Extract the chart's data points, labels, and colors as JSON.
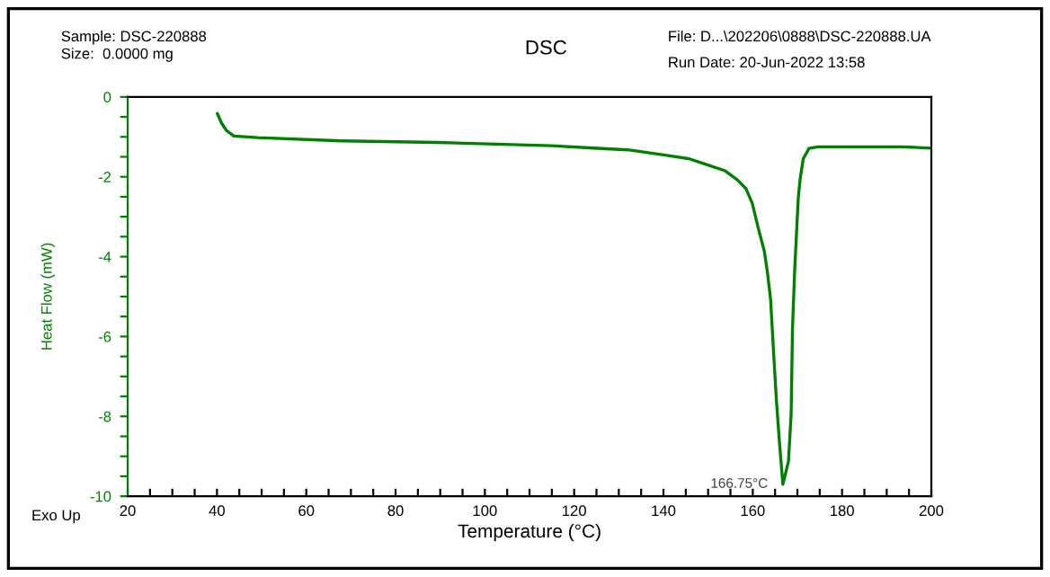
{
  "chart_data": {
    "type": "line",
    "title": "DSC",
    "xlabel": "Temperature (°C)",
    "ylabel": "Heat Flow (mW)",
    "annotations": [
      "Sample: DSC-220888",
      "Size:  0.0000 mg",
      "File: D...\\202206\\0888\\DSC-220888.UA",
      "Run Date: 20-Jun-2022 13:58",
      "Exo Up",
      {
        "text": "166.75°C",
        "x": 166.75,
        "y": -9.7
      }
    ],
    "series": [
      {
        "color": "#008000",
        "x": [
          40.1,
          41.0,
          42.1,
          43.8,
          49.1,
          67.9,
          89.3,
          114.9,
          124.3,
          131.0,
          132.4,
          140.4,
          145.8,
          149.8,
          153.8,
          156.5,
          158.5,
          159.9,
          161.2,
          162.6,
          163.3,
          164.0,
          164.6,
          165.3,
          166.0,
          166.75,
          168.0,
          168.6,
          168.9,
          169.4,
          169.8,
          170.2,
          170.6,
          171.3,
          172.6,
          174.6,
          193.5,
          199.5
        ],
        "values": [
          -0.42,
          -0.65,
          -0.84,
          -0.98,
          -1.02,
          -1.1,
          -1.14,
          -1.22,
          -1.28,
          -1.32,
          -1.33,
          -1.46,
          -1.55,
          -1.7,
          -1.85,
          -2.07,
          -2.3,
          -2.67,
          -3.27,
          -3.87,
          -4.4,
          -5.07,
          -6.27,
          -7.6,
          -8.68,
          -9.7,
          -9.13,
          -7.93,
          -5.8,
          -4.32,
          -3.42,
          -2.52,
          -2.07,
          -1.55,
          -1.29,
          -1.25,
          -1.25,
          -1.28
        ]
      }
    ],
    "xlim": [
      20,
      200
    ],
    "ylim": [
      -10,
      0
    ],
    "xticks": [
      20,
      {
        "value": 25,
        "label": null
      },
      {
        "value": 30,
        "label": null
      },
      {
        "value": 35,
        "label": null
      },
      40,
      {
        "value": 45,
        "label": null
      },
      {
        "value": 50,
        "label": null
      },
      {
        "value": 55,
        "label": null
      },
      60,
      {
        "value": 65,
        "label": null
      },
      {
        "value": 70,
        "label": null
      },
      {
        "value": 75,
        "label": null
      },
      80,
      {
        "value": 85,
        "label": null
      },
      {
        "value": 90,
        "label": null
      },
      {
        "value": 95,
        "label": null
      },
      100,
      {
        "value": 105,
        "label": null
      },
      {
        "value": 110,
        "label": null
      },
      {
        "value": 115,
        "label": null
      },
      120,
      {
        "value": 125,
        "label": null
      },
      {
        "value": 130,
        "label": null
      },
      {
        "value": 135,
        "label": null
      },
      140,
      {
        "value": 145,
        "label": null
      },
      {
        "value": 150,
        "label": null
      },
      {
        "value": 155,
        "label": null
      },
      160,
      {
        "value": 165,
        "label": null
      },
      {
        "value": 170,
        "label": null
      },
      {
        "value": 175,
        "label": null
      },
      180,
      {
        "value": 185,
        "label": null
      },
      {
        "value": 190,
        "label": null
      },
      {
        "value": 195,
        "label": null
      },
      200
    ],
    "yticks": [
      -10,
      {
        "value": -9.5,
        "label": null
      },
      {
        "value": -9,
        "label": null
      },
      {
        "value": -8.5,
        "label": null
      },
      -8,
      {
        "value": -7.5,
        "label": null
      },
      {
        "value": -7,
        "label": null
      },
      {
        "value": -6.5,
        "label": null
      },
      -6,
      {
        "value": -5.5,
        "label": null
      },
      {
        "value": -5,
        "label": null
      },
      {
        "value": -4.5,
        "label": null
      },
      -4,
      {
        "value": -3.5,
        "label": null
      },
      {
        "value": -3,
        "label": null
      },
      {
        "value": -2.5,
        "label": null
      },
      -2,
      {
        "value": -1.5,
        "label": null
      },
      {
        "value": -1,
        "label": null
      },
      {
        "value": -0.5,
        "label": null
      },
      0
    ],
    "grid": false,
    "legend": false,
    "marker": "none",
    "line_style": "solid"
  }
}
